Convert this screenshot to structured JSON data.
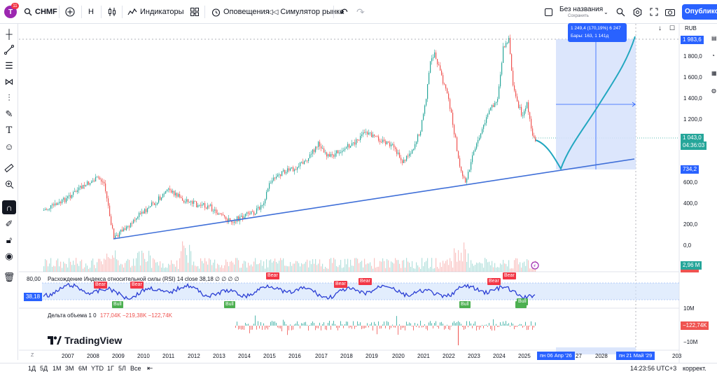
{
  "header": {
    "avatar_letter": "T",
    "notification_count": "11",
    "symbol": "CHMF",
    "interval": "Н",
    "indicators_label": "Индикаторы",
    "alerts_label": "Оповещения",
    "replay_label": "Симулятор рынка",
    "layout_name": "Без названия",
    "layout_status": "Сохранить",
    "publish_label": "Опубликова"
  },
  "price_scale": {
    "currency": "RUB",
    "ticks": [
      "1 800,0",
      "1 600,0",
      "1 400,0",
      "1 200,0",
      "600,0",
      "400,0",
      "200,0",
      "0,0"
    ],
    "top_tag": "1 983,6",
    "price_tag": "1 043,0",
    "countdown_tag": "04:36:03",
    "bottom_tag": "734,2",
    "volume_tag": "2,96 M"
  },
  "measure_tooltip": {
    "line1": "1 249,4 (170,19%) 6 247",
    "line2": "Бары: 163, 1 141д"
  },
  "rsi": {
    "level_label": "80,00",
    "legend": "Расхождение Индекса относительной силы (RSI) 14 close 38,18 ∅ ∅ ∅ ∅",
    "value_tag": "38,18",
    "bull_label": "Bull",
    "bear_label": "Bear"
  },
  "volume_delta": {
    "legend_name": "Дельта объема 1 0",
    "legend_values": "177,04K −219,38K −122,74K",
    "scale_top": "10M",
    "scale_bottom": "−10M",
    "value_tag": "−122,74K"
  },
  "time_axis": {
    "years": [
      "2007",
      "2008",
      "2009",
      "2010",
      "2011",
      "2012",
      "2013",
      "2014",
      "2015",
      "2016",
      "2017",
      "2018",
      "2019",
      "2020",
      "2021",
      "2022",
      "2023",
      "2024",
      "2025",
      "27",
      "2028",
      "203"
    ],
    "start_date_tag": "пн 06 Апр '26",
    "end_date_tag": "пн 21 Май '29"
  },
  "logo_text": "TradingView",
  "bottom_bar": {
    "ranges": [
      "1Д",
      "5Д",
      "1М",
      "3М",
      "6М",
      "YTD",
      "1Г",
      "5Л",
      "Все"
    ],
    "clock": "14:23:56 UTC+3",
    "adjust": "коррект."
  },
  "colors": {
    "up": "#26a69a",
    "down": "#ef5350",
    "accent": "#2962ff",
    "trendline": "#3f6fd8",
    "projection": "#22a7c0",
    "measure_fill": "#d6e2fb",
    "rsi_line": "#2a3ed4",
    "bull": "#4caf50",
    "bear": "#f23645"
  }
}
